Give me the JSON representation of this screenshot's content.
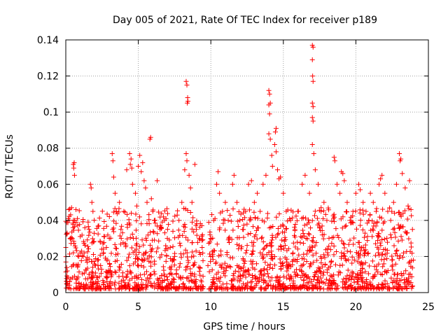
{
  "chart_data": {
    "type": "scatter",
    "title": "Day 005 of 2021, Rate Of TEC Index for receiver p189",
    "xlabel": "GPS time / hours",
    "ylabel": "ROTI / TECUs",
    "xlim": [
      0,
      25
    ],
    "ylim": [
      0,
      0.14
    ],
    "x_ticks": [
      0,
      5,
      10,
      15,
      20,
      25
    ],
    "y_ticks": [
      0,
      0.02,
      0.04,
      0.06,
      0.08,
      0.1,
      0.12,
      0.14
    ],
    "x_tick_labels": [
      "0",
      "5",
      "10",
      "15",
      "20",
      "25"
    ],
    "y_tick_labels": [
      "0",
      "0.02",
      "0.04",
      "0.06",
      "0.08",
      "0.1",
      "0.12",
      "0.14"
    ],
    "grid": true,
    "marker": "+",
    "color": "#ff0000",
    "series": [
      {
        "points": [
          [
            0.1,
            0.012
          ],
          [
            0.2,
            0.046
          ],
          [
            0.3,
            0.03
          ],
          [
            0.4,
            0.047
          ],
          [
            0.5,
            0.036
          ],
          [
            0.6,
            0.04
          ],
          [
            0.7,
            0.046
          ],
          [
            0.8,
            0.041
          ],
          [
            0.9,
            0.02
          ],
          [
            0.52,
            0.071
          ],
          [
            0.55,
            0.069
          ],
          [
            0.58,
            0.072
          ],
          [
            0.6,
            0.065
          ],
          [
            1.2,
            0.02
          ],
          [
            1.4,
            0.018
          ],
          [
            1.6,
            0.035
          ],
          [
            1.7,
            0.06
          ],
          [
            1.75,
            0.058
          ],
          [
            1.8,
            0.05
          ],
          [
            1.9,
            0.028
          ],
          [
            2.2,
            0.018
          ],
          [
            2.4,
            0.015
          ],
          [
            2.6,
            0.022
          ],
          [
            2.8,
            0.025
          ],
          [
            3.0,
            0.03
          ],
          [
            3.2,
            0.077
          ],
          [
            3.25,
            0.073
          ],
          [
            3.3,
            0.064
          ],
          [
            3.4,
            0.055
          ],
          [
            3.5,
            0.045
          ],
          [
            3.7,
            0.05
          ],
          [
            3.8,
            0.035
          ],
          [
            4.0,
            0.045
          ],
          [
            4.2,
            0.068
          ],
          [
            4.4,
            0.077
          ],
          [
            4.45,
            0.071
          ],
          [
            4.5,
            0.074
          ],
          [
            4.55,
            0.069
          ],
          [
            4.6,
            0.06
          ],
          [
            4.8,
            0.055
          ],
          [
            4.9,
            0.048
          ],
          [
            5.0,
            0.07
          ],
          [
            5.1,
            0.076
          ],
          [
            5.2,
            0.067
          ],
          [
            5.3,
            0.072
          ],
          [
            5.4,
            0.062
          ],
          [
            5.5,
            0.058
          ],
          [
            5.6,
            0.05
          ],
          [
            5.8,
            0.085
          ],
          [
            5.85,
            0.086
          ],
          [
            5.9,
            0.052
          ],
          [
            6.0,
            0.045
          ],
          [
            6.1,
            0.04
          ],
          [
            6.3,
            0.062
          ],
          [
            6.5,
            0.035
          ],
          [
            6.8,
            0.04
          ],
          [
            7.0,
            0.03
          ],
          [
            7.2,
            0.025
          ],
          [
            7.5,
            0.02
          ],
          [
            7.8,
            0.04
          ],
          [
            8.0,
            0.05
          ],
          [
            8.3,
            0.117
          ],
          [
            8.35,
            0.115
          ],
          [
            8.4,
            0.108
          ],
          [
            8.38,
            0.105
          ],
          [
            8.42,
            0.106
          ],
          [
            8.3,
            0.077
          ],
          [
            8.35,
            0.073
          ],
          [
            8.2,
            0.068
          ],
          [
            8.5,
            0.065
          ],
          [
            8.6,
            0.058
          ],
          [
            8.7,
            0.05
          ],
          [
            8.9,
            0.071
          ],
          [
            9.0,
            0.035
          ],
          [
            9.2,
            0.03
          ],
          [
            9.4,
            0.025
          ],
          [
            9.8,
            0.015
          ],
          [
            10.0,
            0.03
          ],
          [
            10.2,
            0.04
          ],
          [
            10.4,
            0.06
          ],
          [
            10.5,
            0.067
          ],
          [
            10.6,
            0.055
          ],
          [
            10.8,
            0.045
          ],
          [
            11.0,
            0.05
          ],
          [
            11.2,
            0.04
          ],
          [
            11.5,
            0.06
          ],
          [
            11.6,
            0.065
          ],
          [
            11.8,
            0.05
          ],
          [
            12.0,
            0.04
          ],
          [
            12.2,
            0.035
          ],
          [
            12.4,
            0.045
          ],
          [
            12.6,
            0.06
          ],
          [
            12.8,
            0.062
          ],
          [
            13.0,
            0.05
          ],
          [
            13.2,
            0.055
          ],
          [
            13.4,
            0.045
          ],
          [
            13.6,
            0.06
          ],
          [
            13.8,
            0.065
          ],
          [
            14.0,
            0.112
          ],
          [
            14.05,
            0.11
          ],
          [
            14.1,
            0.105
          ],
          [
            14.0,
            0.104
          ],
          [
            14.05,
            0.099
          ],
          [
            14.0,
            0.088
          ],
          [
            14.1,
            0.085
          ],
          [
            14.2,
            0.076
          ],
          [
            14.25,
            0.07
          ],
          [
            14.5,
            0.091
          ],
          [
            14.45,
            0.089
          ],
          [
            14.4,
            0.082
          ],
          [
            14.5,
            0.078
          ],
          [
            14.6,
            0.068
          ],
          [
            14.7,
            0.063
          ],
          [
            14.8,
            0.064
          ],
          [
            15.0,
            0.055
          ],
          [
            15.2,
            0.045
          ],
          [
            15.5,
            0.04
          ],
          [
            15.8,
            0.035
          ],
          [
            16.0,
            0.045
          ],
          [
            16.3,
            0.06
          ],
          [
            16.5,
            0.065
          ],
          [
            16.8,
            0.055
          ],
          [
            17.0,
            0.137
          ],
          [
            17.05,
            0.136
          ],
          [
            17.0,
            0.129
          ],
          [
            17.02,
            0.12
          ],
          [
            17.05,
            0.117
          ],
          [
            17.0,
            0.105
          ],
          [
            17.05,
            0.103
          ],
          [
            17.0,
            0.097
          ],
          [
            17.05,
            0.095
          ],
          [
            17.0,
            0.082
          ],
          [
            17.1,
            0.077
          ],
          [
            17.2,
            0.068
          ],
          [
            17.4,
            0.06
          ],
          [
            17.6,
            0.045
          ],
          [
            17.8,
            0.05
          ],
          [
            18.0,
            0.04
          ],
          [
            18.5,
            0.075
          ],
          [
            18.55,
            0.073
          ],
          [
            18.7,
            0.06
          ],
          [
            18.9,
            0.055
          ],
          [
            19.0,
            0.067
          ],
          [
            19.1,
            0.066
          ],
          [
            19.2,
            0.062
          ],
          [
            19.4,
            0.05
          ],
          [
            19.6,
            0.04
          ],
          [
            19.8,
            0.045
          ],
          [
            20.0,
            0.055
          ],
          [
            20.2,
            0.06
          ],
          [
            20.3,
            0.057
          ],
          [
            20.5,
            0.05
          ],
          [
            20.7,
            0.045
          ],
          [
            20.9,
            0.04
          ],
          [
            21.0,
            0.055
          ],
          [
            21.2,
            0.05
          ],
          [
            21.4,
            0.045
          ],
          [
            21.6,
            0.06
          ],
          [
            21.7,
            0.063
          ],
          [
            21.8,
            0.065
          ],
          [
            22.0,
            0.055
          ],
          [
            22.2,
            0.045
          ],
          [
            22.4,
            0.04
          ],
          [
            22.6,
            0.05
          ],
          [
            22.8,
            0.06
          ],
          [
            23.0,
            0.077
          ],
          [
            23.05,
            0.073
          ],
          [
            23.1,
            0.074
          ],
          [
            23.2,
            0.066
          ],
          [
            23.4,
            0.058
          ],
          [
            23.6,
            0.048
          ],
          [
            23.7,
            0.062
          ],
          [
            23.8,
            0.046
          ],
          [
            23.9,
            0.035
          ]
        ]
      }
    ]
  }
}
